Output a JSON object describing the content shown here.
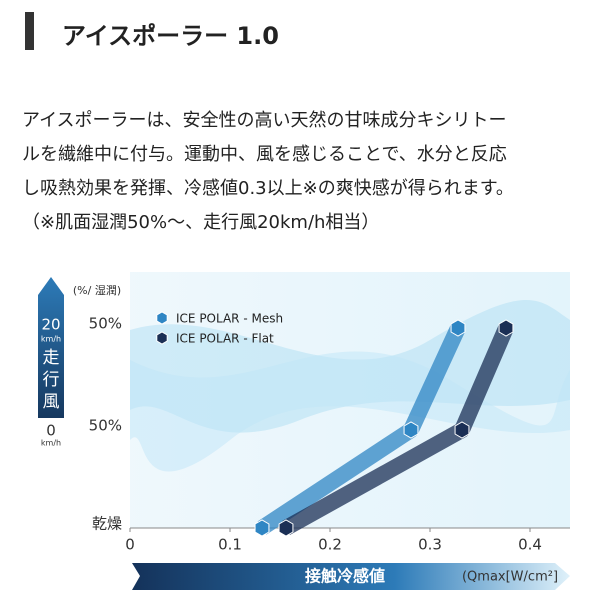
{
  "header": {
    "title": "アイスポーラー 1.0"
  },
  "body": {
    "lines": [
      "アイスポーラーは、安全性の高い天然の甘味成分キシリトー",
      "ルを繊維中に付与。運動中、風を感じることで、水分と反応",
      "し吸熱効果を発揮、冷感値0.3以上※の爽快感が得られます。"
    ],
    "note": "（※肌面湿潤50%〜、走行風20km/h相当）"
  },
  "chart_data": {
    "type": "scatter",
    "y_axis_title": "(%/ 湿潤)",
    "categories": [
      "乾燥",
      "50%",
      "50%"
    ],
    "wind_labels": {
      "high": "20",
      "high_unit": "km/h",
      "label": [
        "走",
        "行",
        "風"
      ],
      "low": "0",
      "low_unit": "km/h"
    },
    "x_label": "接触冷感値",
    "x_unit": "(Qmax[W/cm²]",
    "xlim": [
      0,
      0.44
    ],
    "xticks": [
      0,
      0.1,
      0.2,
      0.3,
      0.4
    ],
    "series": [
      {
        "name": "ICE POLAR - Mesh",
        "color": "#2f86c4",
        "values": [
          0.132,
          0.281,
          0.328
        ]
      },
      {
        "name": "ICE POLAR - Flat",
        "color": "#1b2f55",
        "values": [
          0.156,
          0.332,
          0.376
        ]
      }
    ]
  }
}
